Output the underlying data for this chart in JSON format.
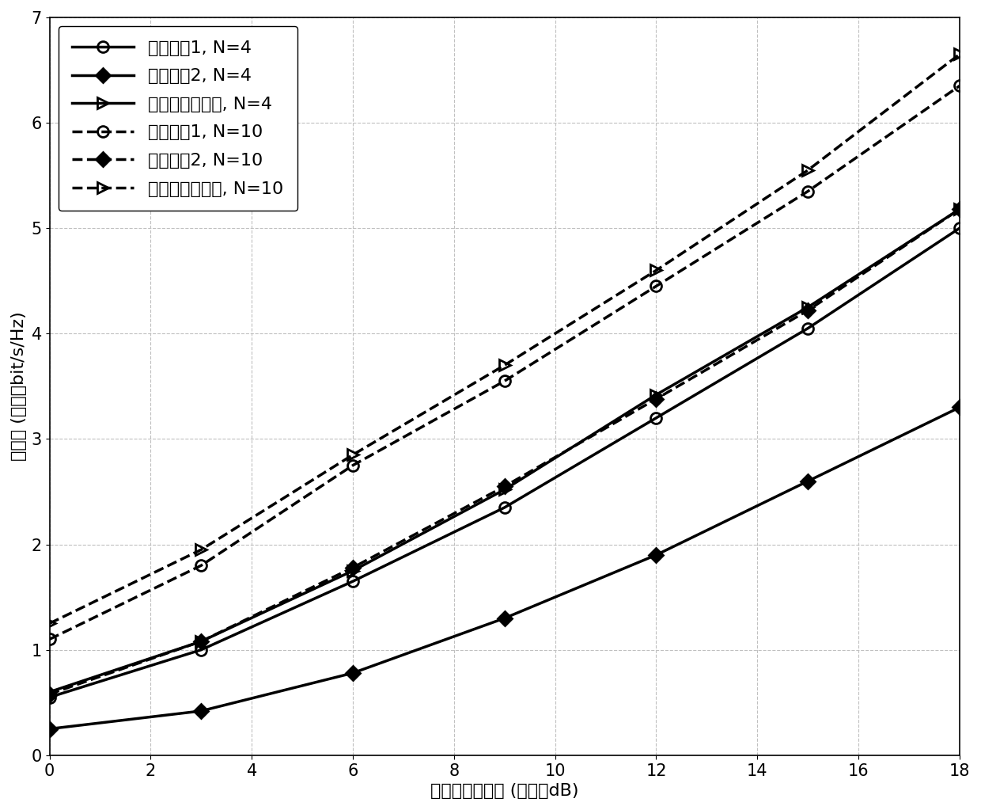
{
  "x": [
    0,
    3,
    6,
    9,
    12,
    15,
    18
  ],
  "series": {
    "alg1_N4": {
      "label": "已有算法1, N=4",
      "y": [
        0.55,
        1.0,
        1.65,
        2.35,
        3.2,
        4.05,
        5.0
      ],
      "linestyle": "-",
      "marker": "o",
      "markersize": 10,
      "linewidth": 2.5,
      "fillstyle": "none"
    },
    "alg2_N4": {
      "label": "已有算法2, N=4",
      "y": [
        0.25,
        0.42,
        0.78,
        1.3,
        1.9,
        2.6,
        3.3
      ],
      "linestyle": "-",
      "marker": "D",
      "markersize": 9,
      "linewidth": 2.5,
      "fillstyle": "full"
    },
    "prop_N4": {
      "label": "本专利所提算法, N=4",
      "y": [
        0.6,
        1.08,
        1.75,
        2.52,
        3.42,
        4.25,
        5.18
      ],
      "linestyle": "-",
      "marker": ">",
      "markersize": 10,
      "linewidth": 2.5,
      "fillstyle": "none"
    },
    "alg1_N10": {
      "label": "已有算法1, N=10",
      "y": [
        1.1,
        1.8,
        2.75,
        3.55,
        4.45,
        5.35,
        6.35
      ],
      "linestyle": "--",
      "marker": "o",
      "markersize": 10,
      "linewidth": 2.5,
      "fillstyle": "none"
    },
    "alg2_N10": {
      "label": "已有算法2, N=10",
      "y": [
        0.58,
        1.08,
        1.78,
        2.55,
        3.38,
        4.22,
        5.18
      ],
      "linestyle": "--",
      "marker": "D",
      "markersize": 9,
      "linewidth": 2.5,
      "fillstyle": "full"
    },
    "prop_N10": {
      "label": "本专利所提算法, N=10",
      "y": [
        1.25,
        1.95,
        2.85,
        3.7,
        4.6,
        5.55,
        6.65
      ],
      "linestyle": "--",
      "marker": ">",
      "markersize": 10,
      "linewidth": 2.5,
      "fillstyle": "none"
    }
  },
  "xlabel": "中继总功率约束 (单位：dB)",
  "ylabel": "和速率 (单位：bit/s/Hz)",
  "xlim": [
    0,
    18
  ],
  "ylim": [
    0,
    7
  ],
  "xticks": [
    0,
    2,
    4,
    6,
    8,
    10,
    12,
    14,
    16,
    18
  ],
  "yticks": [
    0,
    1,
    2,
    3,
    4,
    5,
    6,
    7
  ],
  "grid_color": "#c0c0c0",
  "line_color": "#000000",
  "background_color": "#ffffff",
  "legend_fontsize": 15,
  "axis_fontsize": 16,
  "tick_fontsize": 15
}
